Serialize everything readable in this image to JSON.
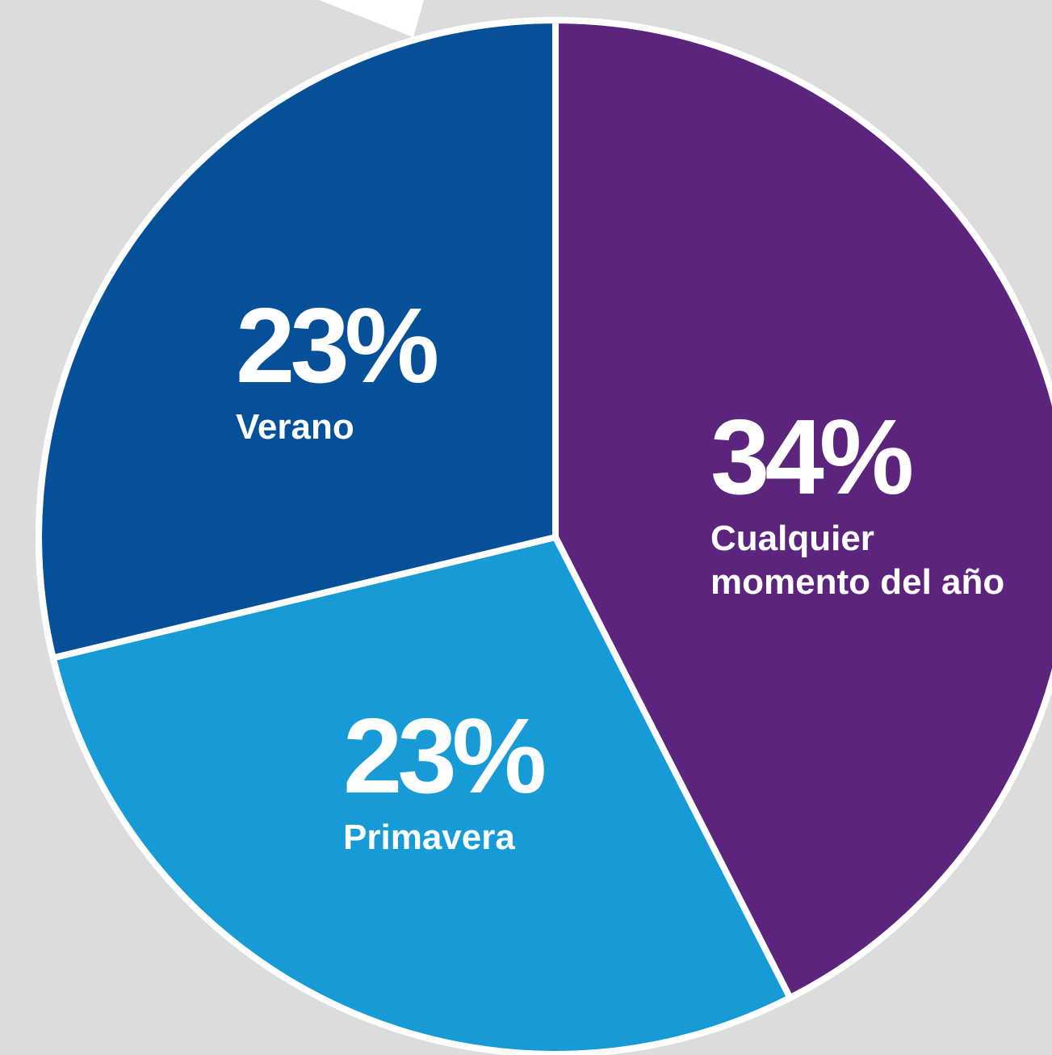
{
  "chart_data": {
    "type": "pie",
    "categories": [
      "Cualquier momento del año",
      "Primavera",
      "Verano"
    ],
    "values": [
      34,
      23,
      23
    ],
    "value_labels": [
      "34%",
      "23%",
      "23%"
    ],
    "colors": [
      "#5c247c",
      "#169bd7",
      "#06509a"
    ]
  }
}
